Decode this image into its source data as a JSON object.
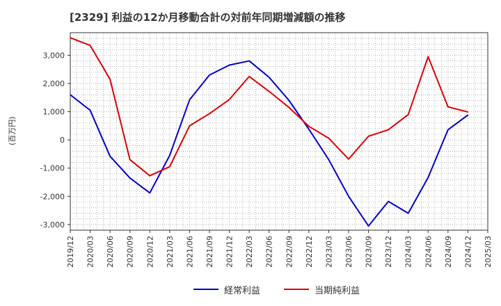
{
  "chart_data": {
    "type": "line",
    "title": "[2329]  利益の12か月移動合計の対前年同期増減額の推移",
    "ylabel": "(百万円)",
    "xlabel": "",
    "ylim": [
      -3200,
      3800
    ],
    "yticks": [
      3000,
      2000,
      1000,
      0,
      -1000,
      -2000,
      -3000
    ],
    "ytick_labels": [
      "3,000",
      "2,000",
      "1,000",
      "0",
      "-1,000",
      "-2,000",
      "-3,000"
    ],
    "categories": [
      "2019/12",
      "2020/03",
      "2020/06",
      "2020/09",
      "2020/12",
      "2021/03",
      "2021/06",
      "2021/09",
      "2021/12",
      "2022/03",
      "2022/06",
      "2022/09",
      "2022/12",
      "2023/03",
      "2023/06",
      "2023/09",
      "2023/12",
      "2024/03",
      "2024/06",
      "2024/09",
      "2024/12",
      "2025/03"
    ],
    "series": [
      {
        "name": "経常利益",
        "color": "#0000cc",
        "values": [
          1600,
          1050,
          -580,
          -1350,
          -1880,
          -550,
          1420,
          2300,
          2650,
          2800,
          2220,
          1400,
          380,
          -700,
          -2000,
          -3050,
          -2180,
          -2600,
          -1330,
          360,
          880,
          null
        ]
      },
      {
        "name": "当期純利益",
        "color": "#dd0000",
        "values": [
          3620,
          3350,
          2150,
          -700,
          -1270,
          -950,
          500,
          930,
          1430,
          2250,
          1720,
          1150,
          480,
          60,
          -680,
          130,
          360,
          900,
          2950,
          1170,
          990,
          null
        ]
      }
    ],
    "legend_position": "bottom",
    "grid": true
  }
}
